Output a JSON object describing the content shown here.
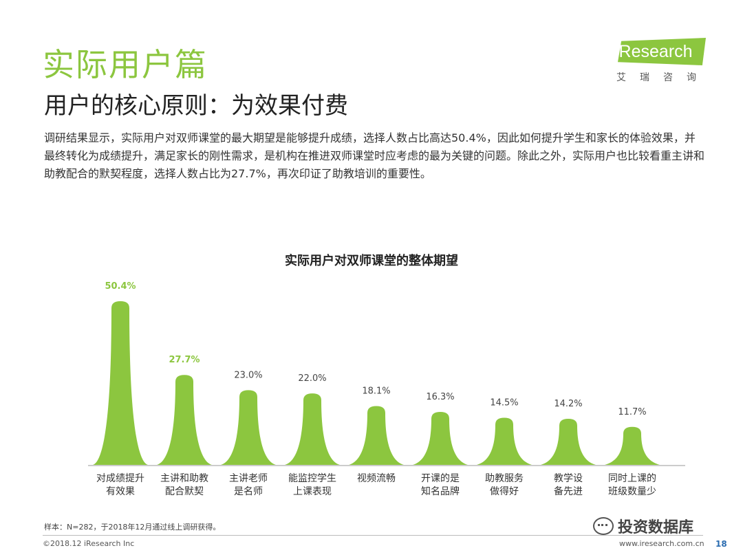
{
  "header": {
    "title": "实际用户篇",
    "subtitle": "用户的核心原则：为效果付费"
  },
  "logo": {
    "brand": "iResearch",
    "subtext": "艾瑞咨询"
  },
  "description": "调研结果显示，实际用户对双师课堂的最大期望是能够提升成绩，选择人数占比高达50.4%，因此如何提升学生和家长的体验效果，并最终转化为成绩提升，满足家长的刚性需求，是机构在推进双师课堂时应考虑的最为关键的问题。除此之外，实际用户也比较看重主讲和助教配合的默契程度，选择人数占比为27.7%，再次印证了助教培训的重要性。",
  "chart_data": {
    "type": "bar",
    "title": "实际用户对双师课堂的整体期望",
    "categories": [
      [
        "对成绩提升",
        "有效果"
      ],
      [
        "主讲和助教",
        "配合默契"
      ],
      [
        "主讲老师",
        "是名师"
      ],
      [
        "能监控学生",
        "上课表现"
      ],
      [
        "视频流畅"
      ],
      [
        "开课的是",
        "知名品牌"
      ],
      [
        "助教服务",
        "做得好"
      ],
      [
        "教学设",
        "备先进"
      ],
      [
        "同时上课的",
        "班级数量少"
      ]
    ],
    "values": [
      50.4,
      27.7,
      23.0,
      22.0,
      18.1,
      16.3,
      14.5,
      14.2,
      11.7
    ],
    "labels": [
      "50.4%",
      "27.7%",
      "23.0%",
      "22.0%",
      "18.1%",
      "16.3%",
      "14.5%",
      "14.2%",
      "11.7%"
    ],
    "highlight_indices": [
      0,
      1
    ],
    "bar_color": "#8cc63f",
    "highlight_label_color": "#8cc63f",
    "label_color": "#444444",
    "unit": "%"
  },
  "footer": {
    "sample_note": "样本：N=282，于2018年12月通过线上调研获得。",
    "copyright": "©2018.12 iResearch Inc",
    "website": "www.iresearch.com.cn",
    "watermark": "投资数据库",
    "page_number": "18"
  }
}
